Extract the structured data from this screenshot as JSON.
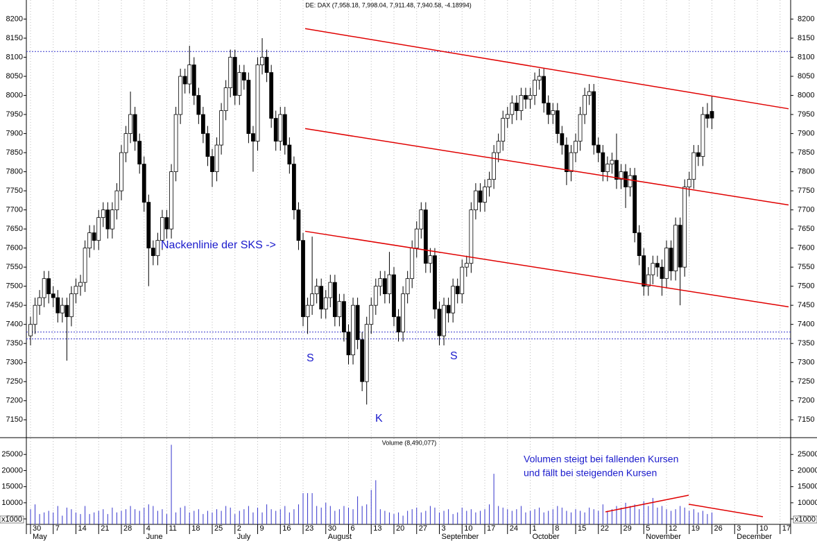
{
  "chart_data": {
    "type": "candlestick",
    "title": "DE: DAX (7,958.18, 7,998.04, 7,911.48, 7,940.58, -4.18994)",
    "candles": {
      "open": [
        7370,
        7400,
        7450,
        7470,
        7520,
        7480,
        7470,
        7430,
        7450,
        7420,
        7480,
        7500,
        7510,
        7600,
        7640,
        7620,
        7680,
        7700,
        7650,
        7700,
        7750,
        7850,
        7900,
        7950,
        7880,
        7820,
        7720,
        7600,
        7580,
        7620,
        7680,
        7650,
        7800,
        7950,
        8050,
        8030,
        8080,
        8000,
        7950,
        7900,
        7840,
        7800,
        7870,
        7960,
        8020,
        8100,
        8000,
        8060,
        8040,
        7900,
        7880,
        8080,
        8100,
        8060,
        7940,
        7880,
        7950,
        7870,
        7820,
        7700,
        7620,
        7420,
        7450,
        7480,
        7500,
        7440,
        7470,
        7510,
        7420,
        7460,
        7380,
        7320,
        7450,
        7360,
        7250,
        7400,
        7450,
        7500,
        7520,
        7480,
        7530,
        7420,
        7380,
        7480,
        7520,
        7600,
        7650,
        7700,
        7560,
        7580,
        7440,
        7370,
        7450,
        7430,
        7500,
        7480,
        7550,
        7560,
        7700,
        7750,
        7720,
        7760,
        7780,
        7850,
        7880,
        7940,
        7950,
        7980,
        7960,
        8000,
        7990,
        8000,
        8040,
        8050,
        7980,
        7950,
        7960,
        7900,
        7870,
        7800,
        7850,
        7880,
        7950,
        8000,
        8010,
        7870,
        7850,
        7800,
        7820,
        7830,
        7780,
        7800,
        7760,
        7790,
        7640,
        7580,
        7500,
        7530,
        7560,
        7550,
        7520,
        7600,
        7540,
        7660,
        7550,
        7760,
        7780,
        7850,
        7840,
        7950,
        7958.18
      ],
      "high": [
        7420,
        7470,
        7490,
        7540,
        7540,
        7500,
        7490,
        7470,
        7470,
        7500,
        7520,
        7530,
        7620,
        7660,
        7660,
        7700,
        7720,
        7720,
        7720,
        7770,
        7870,
        7920,
        8010,
        7970,
        7900,
        7840,
        7740,
        7620,
        7640,
        7700,
        7700,
        7820,
        7970,
        8070,
        8070,
        8130,
        8100,
        8020,
        7970,
        7920,
        7860,
        7890,
        7980,
        8040,
        8120,
        8120,
        8080,
        8080,
        8060,
        7920,
        8100,
        8150,
        8120,
        8080,
        7960,
        7970,
        7970,
        7890,
        7840,
        7720,
        7640,
        7470,
        7630,
        7520,
        7520,
        7490,
        7530,
        7530,
        7480,
        7480,
        7400,
        7470,
        7470,
        7380,
        7420,
        7470,
        7520,
        7540,
        7540,
        7590,
        7550,
        7440,
        7500,
        7540,
        7620,
        7670,
        7720,
        7720,
        7600,
        7600,
        7460,
        7470,
        7470,
        7520,
        7520,
        7570,
        7580,
        7720,
        7770,
        7770,
        7780,
        7800,
        7870,
        7900,
        7960,
        7970,
        8000,
        8000,
        8020,
        8020,
        8020,
        8060,
        8070,
        8070,
        8000,
        7980,
        7980,
        7920,
        7890,
        7870,
        7900,
        7970,
        8020,
        8030,
        8030,
        7890,
        7870,
        7840,
        7850,
        7900,
        7820,
        7820,
        7810,
        7810,
        7660,
        7600,
        7550,
        7580,
        7580,
        7570,
        7620,
        7620,
        7680,
        7680,
        7780,
        7800,
        7870,
        7870,
        7970,
        7980,
        7998.04
      ],
      "low": [
        7345,
        7375,
        7425,
        7445,
        7455,
        7445,
        7405,
        7405,
        7305,
        7395,
        7455,
        7475,
        7485,
        7575,
        7595,
        7595,
        7655,
        7625,
        7625,
        7675,
        7725,
        7825,
        7875,
        7855,
        7795,
        7695,
        7500,
        7555,
        7555,
        7595,
        7625,
        7625,
        7775,
        7925,
        8005,
        8005,
        7975,
        7925,
        7875,
        7815,
        7760,
        7775,
        7845,
        7935,
        7995,
        7975,
        7975,
        8015,
        7875,
        7800,
        7855,
        8055,
        8035,
        7915,
        7855,
        7855,
        7845,
        7795,
        7675,
        7595,
        7395,
        7375,
        7425,
        7455,
        7415,
        7415,
        7445,
        7395,
        7395,
        7355,
        7295,
        7295,
        7335,
        7225,
        7190,
        7375,
        7425,
        7475,
        7455,
        7455,
        7395,
        7355,
        7355,
        7455,
        7495,
        7575,
        7625,
        7535,
        7535,
        7415,
        7345,
        7345,
        7405,
        7405,
        7455,
        7455,
        7525,
        7535,
        7675,
        7695,
        7695,
        7735,
        7755,
        7825,
        7855,
        7915,
        7925,
        7935,
        7935,
        7965,
        7965,
        7975,
        8015,
        7955,
        7925,
        7925,
        7875,
        7845,
        7765,
        7775,
        7825,
        7855,
        7925,
        7975,
        7845,
        7825,
        7775,
        7775,
        7795,
        7755,
        7755,
        7705,
        7735,
        7615,
        7555,
        7475,
        7475,
        7505,
        7525,
        7475,
        7495,
        7515,
        7515,
        7450,
        7525,
        7735,
        7755,
        7815,
        7815,
        7915,
        7911.48
      ],
      "close": [
        7400,
        7450,
        7470,
        7520,
        7480,
        7470,
        7430,
        7450,
        7420,
        7480,
        7500,
        7510,
        7600,
        7640,
        7620,
        7680,
        7700,
        7650,
        7700,
        7750,
        7850,
        7900,
        7950,
        7880,
        7820,
        7720,
        7600,
        7580,
        7620,
        7680,
        7650,
        7800,
        7950,
        8050,
        8030,
        8080,
        8000,
        7950,
        7900,
        7840,
        7800,
        7870,
        7960,
        8020,
        8100,
        8000,
        8060,
        8040,
        7900,
        7880,
        8080,
        8100,
        8060,
        7940,
        7880,
        7950,
        7870,
        7820,
        7700,
        7620,
        7420,
        7450,
        7480,
        7500,
        7440,
        7470,
        7510,
        7420,
        7460,
        7380,
        7320,
        7450,
        7360,
        7250,
        7400,
        7450,
        7500,
        7520,
        7480,
        7530,
        7420,
        7380,
        7480,
        7520,
        7600,
        7650,
        7700,
        7560,
        7580,
        7440,
        7370,
        7450,
        7430,
        7500,
        7480,
        7550,
        7560,
        7700,
        7750,
        7720,
        7760,
        7780,
        7850,
        7880,
        7940,
        7950,
        7980,
        7960,
        8000,
        7990,
        8000,
        8040,
        8050,
        7980,
        7950,
        7960,
        7900,
        7870,
        7800,
        7850,
        7880,
        7950,
        8000,
        8010,
        7870,
        7850,
        7800,
        7820,
        7830,
        7780,
        7800,
        7760,
        7790,
        7640,
        7580,
        7500,
        7530,
        7560,
        7550,
        7520,
        7600,
        7540,
        7660,
        7550,
        7760,
        7780,
        7850,
        7840,
        7950,
        7940,
        7940.58
      ]
    },
    "up_color": "#ffffff",
    "down_color": "#000000",
    "ylim": [
      7105,
      8250
    ],
    "yticks": [
      7150,
      7200,
      7250,
      7300,
      7350,
      7400,
      7450,
      7500,
      7550,
      7600,
      7650,
      7700,
      7750,
      7800,
      7850,
      7900,
      7950,
      8000,
      8050,
      8100,
      8150,
      8200
    ],
    "week_labels": [
      "30",
      "7",
      "14",
      "21",
      "28",
      "4",
      "11",
      "18",
      "25",
      "2",
      "9",
      "16",
      "23",
      "30",
      "6",
      "13",
      "20",
      "27",
      "3",
      "10",
      "17",
      "24",
      "1",
      "8",
      "15",
      "22",
      "29",
      "5",
      "12",
      "19",
      "26",
      "3",
      "10",
      "17"
    ],
    "month_labels": [
      "May",
      null,
      null,
      null,
      null,
      "June",
      null,
      null,
      null,
      "July",
      null,
      null,
      null,
      "August",
      null,
      null,
      null,
      null,
      "September",
      null,
      null,
      null,
      "October",
      null,
      null,
      null,
      null,
      "November",
      null,
      null,
      null,
      "December",
      null,
      null
    ],
    "grid": true,
    "reference_lines": [
      8115,
      7380,
      7362
    ],
    "reference_color": "#3333cc",
    "trend_lines": [
      {
        "start": 8175,
        "end": 7965
      },
      {
        "start": 7913,
        "end": 7713
      },
      {
        "start": 7644,
        "end": 7446
      }
    ],
    "trend_color": "#e00000",
    "annotations": [
      "Nackenlinie der SKS ->",
      "S",
      "K",
      "S"
    ],
    "volume": {
      "title": "Volume (8,490,077)",
      "unit_label": "x1000",
      "color": "#3333cc",
      "ylim": [
        3300,
        30000
      ],
      "yticks": [
        5000,
        10000,
        15000,
        20000,
        25000
      ],
      "values": [
        8000,
        9500,
        6500,
        7000,
        7500,
        7000,
        9000,
        6000,
        8500,
        8000,
        7000,
        6500,
        9000,
        6500,
        7000,
        7500,
        8000,
        6500,
        8500,
        7000,
        7500,
        8000,
        9000,
        8000,
        7500,
        8500,
        9500,
        9000,
        7500,
        8000,
        6500,
        28000,
        7000,
        8500,
        9000,
        7000,
        7500,
        8000,
        6500,
        7500,
        7000,
        8000,
        7500,
        9000,
        8500,
        6500,
        7500,
        8000,
        9000,
        7000,
        8500,
        7000,
        9500,
        8000,
        7500,
        8000,
        9000,
        7000,
        8000,
        9500,
        13000,
        13000,
        13000,
        9000,
        8500,
        10000,
        9000,
        7500,
        8000,
        9000,
        8500,
        8000,
        12000,
        9000,
        9500,
        14000,
        17000,
        8000,
        7500,
        7000,
        6500,
        7000,
        6000,
        7500,
        8000,
        8500,
        7000,
        7500,
        9000,
        8500,
        7000,
        7500,
        8000,
        6500,
        7000,
        8500,
        7500,
        8000,
        7000,
        7500,
        8000,
        9500,
        19000,
        9000,
        8500,
        8000,
        7500,
        8000,
        9000,
        7000,
        7500,
        8000,
        8500,
        7000,
        7500,
        8000,
        9000,
        8500,
        7500,
        7000,
        8000,
        7500,
        7000,
        8500,
        8000,
        7500,
        9500,
        7500,
        8000,
        9000,
        8500,
        10000,
        9000,
        9500,
        8000,
        10500,
        9000,
        11500,
        8500,
        9000,
        8000,
        7500,
        8000,
        9000,
        8500,
        7500,
        8000,
        7000,
        7500,
        6500,
        7000
      ],
      "annotations": [
        "Volumen steigt bei fallenden Kursen",
        "und fällt bei steigenden Kursen"
      ],
      "trend_lines": [
        {
          "start": 7176,
          "end": 12344
        },
        {
          "start": 9544,
          "end": 5669
        }
      ]
    }
  }
}
